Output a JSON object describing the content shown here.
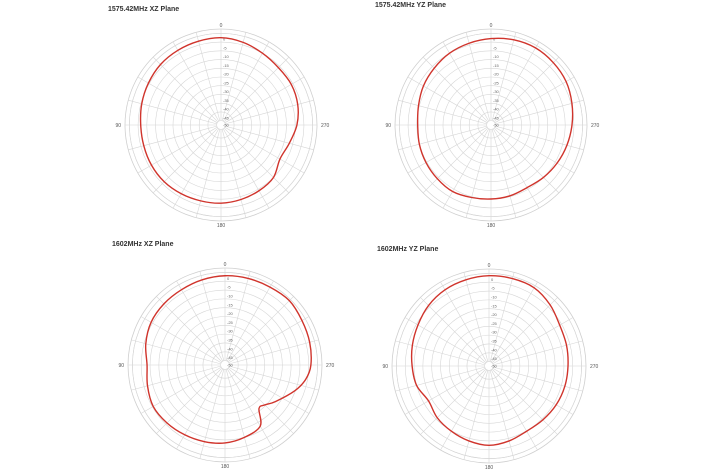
{
  "chart_data": [
    {
      "type": "polar",
      "title": "1575.42MHz XZ Plane",
      "angle_direction": "counterclockwise",
      "zero_location": "top",
      "angle_ticks": [
        "0",
        "90",
        "180",
        "270"
      ],
      "radial_ticks": [
        "0",
        "-5",
        "-10",
        "-15",
        "-20",
        "-25",
        "-30",
        "-35",
        "-40",
        "-45",
        "-50"
      ],
      "rlim": [
        -50,
        5
      ],
      "grid": true,
      "line_color": "#d0342c",
      "theta": [
        0,
        15,
        30,
        45,
        60,
        75,
        90,
        105,
        120,
        135,
        150,
        165,
        180,
        195,
        210,
        225,
        240,
        255,
        270,
        285,
        300,
        315,
        330,
        345
      ],
      "r": [
        0,
        -0.3,
        -0.6,
        -1,
        -2,
        -3,
        -4,
        -4.2,
        -4,
        -4,
        -4.5,
        -5,
        -5.2,
        -5.8,
        -6.5,
        -7.5,
        -11,
        -9.5,
        -6.5,
        -4.5,
        -3.5,
        -3.5,
        -2.5,
        -1
      ]
    },
    {
      "type": "polar",
      "title": "1575.42MHz YZ Plane",
      "angle_direction": "counterclockwise",
      "zero_location": "top",
      "angle_ticks": [
        "0",
        "90",
        "180",
        "270"
      ],
      "radial_ticks": [
        "0",
        "-5",
        "-10",
        "-15",
        "-20",
        "-25",
        "-30",
        "-35",
        "-40",
        "-45",
        "-50"
      ],
      "rlim": [
        -50,
        5
      ],
      "grid": true,
      "line_color": "#d0342c",
      "theta": [
        0,
        15,
        30,
        45,
        60,
        75,
        90,
        105,
        120,
        135,
        150,
        165,
        180,
        195,
        210,
        225,
        240,
        255,
        270,
        285,
        300,
        315,
        330,
        345
      ],
      "r": [
        -0.5,
        -1.5,
        -2.5,
        -4,
        -5.3,
        -7,
        -8,
        -7.5,
        -7,
        -6.5,
        -6,
        -7,
        -7.6,
        -8,
        -8.6,
        -7.5,
        -6.3,
        -5,
        -3.6,
        -2,
        -0.3,
        0.5,
        1,
        0.5
      ]
    },
    {
      "type": "polar",
      "title": "1602MHz XZ Plane",
      "angle_direction": "counterclockwise",
      "zero_location": "top",
      "angle_ticks": [
        "0",
        "90",
        "180",
        "270"
      ],
      "radial_ticks": [
        "0",
        "-5",
        "-10",
        "-15",
        "-20",
        "-25",
        "-30",
        "-35",
        "-40",
        "-45",
        "-50"
      ],
      "rlim": [
        -50,
        5
      ],
      "grid": true,
      "line_color": "#d0342c",
      "theta": [
        0,
        15,
        30,
        45,
        60,
        75,
        90,
        105,
        120,
        135,
        150,
        165,
        180,
        195,
        210,
        218,
        225,
        234,
        250,
        260,
        270,
        285,
        300,
        315,
        330,
        345
      ],
      "r": [
        0.6,
        0,
        -0.7,
        -1,
        -1.6,
        -3.5,
        -5.8,
        -4.5,
        -3,
        -3.5,
        -4.3,
        -5,
        -5.8,
        -7.5,
        -10,
        -18.7,
        -18,
        -14.7,
        -7.7,
        -3.5,
        -1.3,
        -0.3,
        0.4,
        1.6,
        1,
        0.8
      ]
    },
    {
      "type": "polar",
      "title": "1602MHz YZ Plane",
      "angle_direction": "counterclockwise",
      "zero_location": "top",
      "angle_ticks": [
        "0",
        "90",
        "180",
        "270"
      ],
      "radial_ticks": [
        "0",
        "-5",
        "-10",
        "-15",
        "-20",
        "-25",
        "-30",
        "-35",
        "-40",
        "-45",
        "-50"
      ],
      "rlim": [
        -50,
        5
      ],
      "grid": true,
      "line_color": "#d0342c",
      "theta": [
        0,
        15,
        30,
        45,
        60,
        75,
        90,
        105,
        120,
        135,
        150,
        165,
        180,
        195,
        210,
        225,
        240,
        255,
        270,
        285,
        300,
        315,
        330,
        345
      ],
      "r": [
        1.2,
        0.6,
        -0.1,
        -1.5,
        -3.5,
        -5,
        -6.4,
        -7.5,
        -10.4,
        -8.5,
        -7.3,
        -6,
        -5,
        -6,
        -7.3,
        -6.8,
        -6,
        -5.5,
        -5.2,
        -4.5,
        -3.7,
        -1,
        1.2,
        1.3
      ]
    }
  ]
}
